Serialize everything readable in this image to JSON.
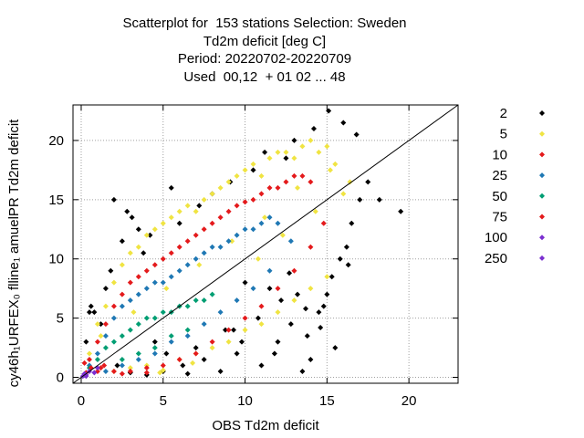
{
  "chart_data": {
    "type": "scatter",
    "title_lines": [
      "Scatterplot for  153 stations Selection: Sweden",
      "Td2m deficit [deg C]",
      "Period: 20220702-20220709",
      "Used  00,12  + 01 02 ... 48"
    ],
    "xlabel": "OBS Td2m deficit",
    "ylabel": "cy46h₁URFEX₀ flline₁ amuelPR Td2m deficit",
    "xlim": [
      -0.5,
      23
    ],
    "ylim": [
      -0.5,
      23
    ],
    "xticks": [
      "0",
      "5",
      "10",
      "15",
      "20"
    ],
    "yticks": [
      "0",
      "5",
      "10",
      "15",
      "20"
    ],
    "grid": true,
    "legend_position": "right",
    "diagonal_line": true,
    "legend": [
      {
        "label": "2",
        "color": "#000000"
      },
      {
        "label": "5",
        "color": "#f0e442"
      },
      {
        "label": "10",
        "color": "#e41a1c"
      },
      {
        "label": "25",
        "color": "#1f78b4"
      },
      {
        "label": "50",
        "color": "#009e73"
      },
      {
        "label": "75",
        "color": "#e41a1c"
      },
      {
        "label": "100",
        "color": "#7b2fd0"
      },
      {
        "label": "250",
        "color": "#7b2fd0"
      }
    ],
    "series": [
      {
        "count_level": "2",
        "color": "#000000",
        "x": [
          1.2,
          1.8,
          2.5,
          0.6,
          3.1,
          4.2,
          2.0,
          3.8,
          5.5,
          6.0,
          7.2,
          8.0,
          9.1,
          10.5,
          11.2,
          12.5,
          13.0,
          14.2,
          15.1,
          16.0,
          16.8,
          17.5,
          18.2,
          15.5,
          14.0,
          13.5,
          12.0,
          11.0,
          9.5,
          8.5,
          7.5,
          6.5,
          5.0,
          4.0,
          3.0,
          2.2,
          1.5,
          0.8,
          10.0,
          12.8,
          14.8,
          15.8,
          16.5,
          13.8,
          11.8,
          9.8,
          8.8,
          7.0,
          6.2,
          5.2,
          4.5,
          3.5,
          2.8,
          16.2,
          17.0,
          14.5,
          13.2,
          12.2,
          10.8,
          9.3,
          15.3,
          16.3,
          0.3,
          0.5,
          19.5,
          15.0,
          14.6,
          13.7,
          11.5,
          12.7
        ],
        "y": [
          4.5,
          9.0,
          11.5,
          6.0,
          13.5,
          12.0,
          15.0,
          10.5,
          16.0,
          13.0,
          14.5,
          15.5,
          16.5,
          17.5,
          19.0,
          18.5,
          20.0,
          21.0,
          22.5,
          21.5,
          20.5,
          16.5,
          15.0,
          2.5,
          1.5,
          0.5,
          3.0,
          1.0,
          2.0,
          0.5,
          1.5,
          0.3,
          0.5,
          0.2,
          0.4,
          1.0,
          7.5,
          5.5,
          8.0,
          4.5,
          6.0,
          10.0,
          13.0,
          3.5,
          2.0,
          3.0,
          4.0,
          2.5,
          1.0,
          2.0,
          3.0,
          12.5,
          14.0,
          11.0,
          15.0,
          5.5,
          7.0,
          6.5,
          5.0,
          4.0,
          8.5,
          9.5,
          3.0,
          5.5,
          14.0,
          7.0,
          4.2,
          5.8,
          7.5,
          8.8
        ]
      },
      {
        "count_level": "5",
        "color": "#f0e442",
        "x": [
          0.5,
          1.0,
          1.5,
          2.0,
          2.5,
          3.0,
          3.5,
          4.0,
          4.5,
          5.0,
          5.5,
          6.0,
          6.5,
          7.0,
          7.5,
          8.0,
          8.5,
          9.0,
          9.5,
          10.0,
          10.5,
          11.0,
          11.5,
          12.0,
          12.5,
          13.0,
          13.5,
          14.0,
          14.5,
          15.0,
          15.5,
          16.0,
          2.0,
          3.0,
          4.0,
          5.0,
          6.0,
          7.0,
          8.0,
          9.0,
          10.0,
          11.0,
          12.0,
          13.0,
          14.0,
          15.0,
          1.2,
          3.2,
          5.2,
          7.2,
          9.2,
          11.2,
          13.2,
          15.2,
          10.8,
          12.3,
          14.3,
          16.4,
          6.8,
          4.8
        ],
        "y": [
          2.0,
          4.5,
          6.0,
          8.0,
          9.5,
          10.5,
          11.0,
          12.0,
          12.5,
          13.0,
          13.5,
          14.0,
          14.5,
          14.0,
          15.0,
          15.5,
          16.0,
          16.5,
          17.0,
          17.5,
          18.0,
          17.0,
          18.5,
          19.0,
          19.0,
          18.5,
          19.5,
          20.0,
          19.0,
          19.5,
          18.0,
          15.5,
          0.5,
          0.8,
          1.0,
          0.6,
          1.5,
          2.0,
          2.5,
          3.0,
          4.0,
          4.5,
          5.5,
          6.5,
          7.5,
          8.5,
          3.5,
          5.5,
          7.5,
          9.5,
          11.5,
          13.5,
          16.0,
          17.5,
          10.0,
          12.0,
          14.0,
          16.5,
          1.2,
          0.4
        ]
      },
      {
        "count_level": "10",
        "color": "#e41a1c",
        "x": [
          0.5,
          1.0,
          1.5,
          2.0,
          2.5,
          3.0,
          3.5,
          4.0,
          4.5,
          5.0,
          5.5,
          6.0,
          6.5,
          7.0,
          7.5,
          8.0,
          8.5,
          9.0,
          9.5,
          10.0,
          10.5,
          11.0,
          11.5,
          12.0,
          12.5,
          13.0,
          13.5,
          14.0,
          3.0,
          4.0,
          5.0,
          6.0,
          7.0,
          8.0,
          9.0,
          10.0,
          11.0,
          12.0,
          13.0,
          14.0,
          14.8,
          2.0,
          1.2
        ],
        "y": [
          1.5,
          3.0,
          4.5,
          6.0,
          7.0,
          8.0,
          8.5,
          9.0,
          9.5,
          10.0,
          10.5,
          11.0,
          11.5,
          12.0,
          12.5,
          13.0,
          13.5,
          14.0,
          14.5,
          14.8,
          15.0,
          15.5,
          16.0,
          16.0,
          16.5,
          17.0,
          17.0,
          16.5,
          0.5,
          0.8,
          1.0,
          1.5,
          2.0,
          3.0,
          4.0,
          5.0,
          6.0,
          7.5,
          9.0,
          11.0,
          13.0,
          0.5,
          0.8
        ]
      },
      {
        "count_level": "25",
        "color": "#1f78b4",
        "x": [
          0.5,
          1.0,
          1.5,
          2.0,
          2.5,
          3.0,
          3.5,
          4.0,
          4.5,
          5.0,
          5.5,
          6.0,
          6.5,
          7.0,
          7.5,
          8.0,
          8.5,
          9.0,
          9.5,
          10.0,
          10.5,
          11.0,
          11.5,
          12.0,
          2.5,
          3.5,
          4.5,
          5.5,
          6.5,
          7.5,
          8.5,
          9.5,
          10.5,
          11.5,
          1.5,
          12.8
        ],
        "y": [
          1.0,
          2.0,
          3.5,
          5.0,
          6.0,
          6.5,
          7.0,
          7.5,
          8.0,
          8.0,
          8.5,
          9.0,
          9.5,
          10.0,
          10.5,
          11.0,
          11.0,
          11.5,
          12.0,
          12.5,
          12.5,
          13.0,
          13.5,
          13.0,
          1.0,
          1.5,
          2.0,
          3.0,
          3.5,
          4.5,
          5.5,
          6.5,
          7.5,
          9.0,
          0.5,
          11.5
        ]
      },
      {
        "count_level": "50",
        "color": "#009e73",
        "x": [
          0.5,
          1.0,
          1.5,
          2.0,
          2.5,
          3.0,
          3.5,
          4.0,
          4.5,
          5.0,
          5.5,
          6.0,
          6.5,
          7.0,
          7.5,
          8.0,
          2.5,
          3.5,
          4.5,
          5.5,
          6.5
        ],
        "y": [
          0.8,
          1.5,
          2.5,
          3.0,
          3.5,
          4.0,
          4.5,
          5.0,
          5.0,
          5.5,
          5.5,
          6.0,
          6.0,
          6.5,
          6.5,
          7.0,
          1.5,
          2.0,
          2.5,
          3.5,
          4.0
        ]
      },
      {
        "count_level": "75",
        "color": "#e41a1c",
        "x": [
          0.3,
          0.6,
          1.0,
          0.2,
          1.4,
          2.5,
          3.0,
          4.0
        ],
        "y": [
          0.4,
          0.8,
          0.5,
          1.2,
          1.0,
          0.3,
          0.5,
          0.4
        ]
      },
      {
        "count_level": "100",
        "color": "#7b2fd0",
        "x": [
          0.2,
          0.5,
          0.8,
          0.3,
          1.0
        ],
        "y": [
          0.3,
          0.5,
          0.4,
          0.1,
          0.8
        ]
      },
      {
        "count_level": "250",
        "color": "#7b2fd0",
        "x": [
          0.1,
          0.3
        ],
        "y": [
          0.1,
          0.2
        ]
      }
    ]
  }
}
